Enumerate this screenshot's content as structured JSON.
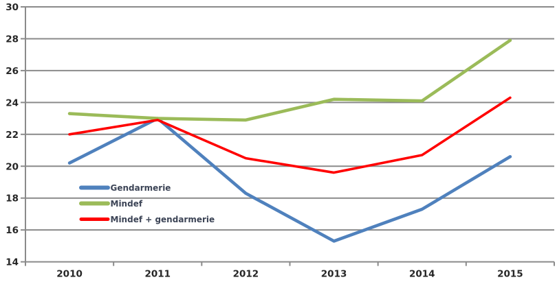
{
  "chart_data": {
    "type": "line",
    "title": "",
    "categories": [
      "2010",
      "2011",
      "2012",
      "2013",
      "2014",
      "2015"
    ],
    "series": [
      {
        "name": "Gendarmerie",
        "color": "#4F81BD",
        "line_width": 4.6,
        "values": [
          20.2,
          23.0,
          18.3,
          15.3,
          17.3,
          20.6
        ]
      },
      {
        "name": "Mindef",
        "color": "#9BBB59",
        "line_width": 4.6,
        "values": [
          23.3,
          23.0,
          22.9,
          24.2,
          24.1,
          27.9
        ]
      },
      {
        "name": "Mindef + gendarmerie",
        "color": "#FF0000",
        "line_width": 3.6,
        "values": [
          22.0,
          22.9,
          20.5,
          19.6,
          20.7,
          24.3
        ]
      }
    ],
    "xlabel": "",
    "ylabel": "",
    "ylim": [
      14,
      30
    ],
    "ytick_step": 2,
    "yticks": [
      14,
      16,
      18,
      20,
      22,
      24,
      26,
      28,
      30
    ],
    "grid": true,
    "legend_position": "inside-left",
    "background_color": "#FFFFFF",
    "grid_color": "#8A8A8A",
    "axis_color": "#8A8A8A",
    "tick_label_color": "#262626",
    "legend_text_color": "#3C4456"
  }
}
